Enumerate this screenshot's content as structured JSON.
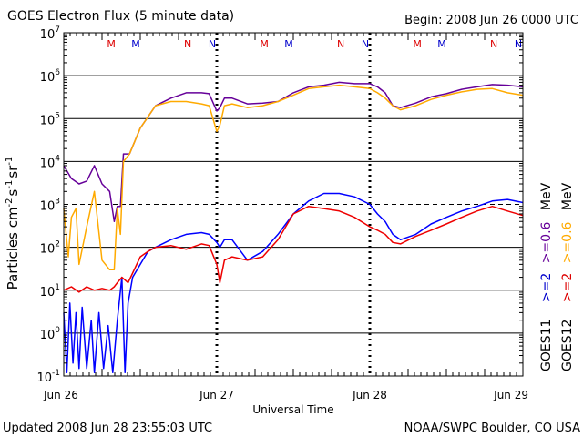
{
  "chart_data": {
    "type": "line",
    "title": "GOES Electron Flux (5 minute data)",
    "begin_label": "Begin: 2008 Jun 26 0000 UTC",
    "xlabel": "Universal Time",
    "ylabel_parts": [
      "Particles cm",
      "-2",
      "s",
      "-1",
      "sr",
      "-1"
    ],
    "updated_label": "Updated 2008 Jun 28 23:55:03 UTC",
    "credit_label": "NOAA/SWPC Boulder, CO USA",
    "x_unit": "days since 2008 Jun 26 0000 UTC",
    "xlim": [
      0,
      3
    ],
    "x_ticks": [
      {
        "x": 0,
        "label": "Jun 26"
      },
      {
        "x": 1,
        "label": "Jun 27"
      },
      {
        "x": 2,
        "label": "Jun 28"
      },
      {
        "x": 3,
        "label": "Jun 29"
      }
    ],
    "y_scale": "log",
    "ylim": [
      0.1,
      10000000
    ],
    "y_ticks": [
      {
        "v": 0.1,
        "base": "10",
        "exp": "-1"
      },
      {
        "v": 1,
        "base": "10",
        "exp": "0"
      },
      {
        "v": 10,
        "base": "10",
        "exp": "1"
      },
      {
        "v": 100,
        "base": "10",
        "exp": "2"
      },
      {
        "v": 1000,
        "base": "10",
        "exp": "3"
      },
      {
        "v": 10000,
        "base": "10",
        "exp": "4"
      },
      {
        "v": 100000,
        "base": "10",
        "exp": "5"
      },
      {
        "v": 1000000,
        "base": "10",
        "exp": "6"
      },
      {
        "v": 10000000,
        "base": "10",
        "exp": "7"
      }
    ],
    "threshold": 1000,
    "day_markers": [
      {
        "x": 0.31,
        "label": "M",
        "color": "#dd0000"
      },
      {
        "x": 0.47,
        "label": "M",
        "color": "#0000cc"
      },
      {
        "x": 0.81,
        "label": "N",
        "color": "#dd0000"
      },
      {
        "x": 0.97,
        "label": "N",
        "color": "#0000cc"
      },
      {
        "x": 1.31,
        "label": "M",
        "color": "#dd0000"
      },
      {
        "x": 1.47,
        "label": "M",
        "color": "#0000cc"
      },
      {
        "x": 1.81,
        "label": "N",
        "color": "#dd0000"
      },
      {
        "x": 1.97,
        "label": "N",
        "color": "#0000cc"
      },
      {
        "x": 2.31,
        "label": "M",
        "color": "#dd0000"
      },
      {
        "x": 2.47,
        "label": "M",
        "color": "#0000cc"
      },
      {
        "x": 2.81,
        "label": "N",
        "color": "#dd0000"
      },
      {
        "x": 2.97,
        "label": "N",
        "color": "#0000cc"
      }
    ],
    "legend_goes11": {
      "satellite": "GOES11",
      "entries": [
        {
          "label": ">=2",
          "color": "#0000cc"
        },
        {
          "label": ">=0.6",
          "color": "#660099"
        }
      ],
      "unit": "MeV"
    },
    "legend_goes12": {
      "satellite": "GOES12",
      "entries": [
        {
          "label": ">=2",
          "color": "#dd0000"
        },
        {
          "label": ">=0.6",
          "color": "#ffaa00"
        }
      ],
      "unit": "MeV"
    },
    "series": [
      {
        "name": "GOES11 >=0.6 MeV",
        "color": "#660099",
        "points": [
          [
            0,
            8000
          ],
          [
            0.05,
            4000
          ],
          [
            0.1,
            3000
          ],
          [
            0.15,
            3500
          ],
          [
            0.2,
            8000
          ],
          [
            0.25,
            3000
          ],
          [
            0.3,
            2000
          ],
          [
            0.33,
            400
          ],
          [
            0.35,
            900
          ],
          [
            0.37,
            900
          ],
          [
            0.39,
            15000
          ],
          [
            0.43,
            15000
          ],
          [
            0.5,
            60000
          ],
          [
            0.6,
            200000
          ],
          [
            0.7,
            300000
          ],
          [
            0.8,
            400000
          ],
          [
            0.9,
            400000
          ],
          [
            0.95,
            380000
          ],
          [
            1,
            150000
          ],
          [
            1.02,
            180000
          ],
          [
            1.05,
            300000
          ],
          [
            1.1,
            300000
          ],
          [
            1.2,
            220000
          ],
          [
            1.3,
            230000
          ],
          [
            1.4,
            250000
          ],
          [
            1.5,
            400000
          ],
          [
            1.6,
            550000
          ],
          [
            1.7,
            600000
          ],
          [
            1.8,
            700000
          ],
          [
            1.9,
            650000
          ],
          [
            2.0,
            650000
          ],
          [
            2.05,
            550000
          ],
          [
            2.1,
            400000
          ],
          [
            2.15,
            200000
          ],
          [
            2.2,
            180000
          ],
          [
            2.3,
            230000
          ],
          [
            2.4,
            320000
          ],
          [
            2.5,
            380000
          ],
          [
            2.6,
            480000
          ],
          [
            2.7,
            550000
          ],
          [
            2.8,
            620000
          ],
          [
            2.9,
            600000
          ],
          [
            3,
            550000
          ]
        ]
      },
      {
        "name": "GOES12 >=0.6 MeV",
        "color": "#ffaa00",
        "points": [
          [
            0,
            800
          ],
          [
            0.03,
            60
          ],
          [
            0.05,
            500
          ],
          [
            0.08,
            800
          ],
          [
            0.1,
            40
          ],
          [
            0.15,
            300
          ],
          [
            0.2,
            2000
          ],
          [
            0.25,
            50
          ],
          [
            0.3,
            30
          ],
          [
            0.33,
            30
          ],
          [
            0.35,
            800
          ],
          [
            0.37,
            200
          ],
          [
            0.39,
            10000
          ],
          [
            0.43,
            15000
          ],
          [
            0.5,
            60000
          ],
          [
            0.6,
            200000
          ],
          [
            0.7,
            250000
          ],
          [
            0.8,
            250000
          ],
          [
            0.9,
            220000
          ],
          [
            0.95,
            200000
          ],
          [
            1,
            50000
          ],
          [
            1.02,
            70000
          ],
          [
            1.05,
            200000
          ],
          [
            1.1,
            220000
          ],
          [
            1.2,
            180000
          ],
          [
            1.3,
            200000
          ],
          [
            1.4,
            250000
          ],
          [
            1.5,
            350000
          ],
          [
            1.6,
            500000
          ],
          [
            1.7,
            550000
          ],
          [
            1.8,
            600000
          ],
          [
            1.9,
            550000
          ],
          [
            2.0,
            500000
          ],
          [
            2.05,
            400000
          ],
          [
            2.1,
            300000
          ],
          [
            2.15,
            200000
          ],
          [
            2.2,
            160000
          ],
          [
            2.3,
            200000
          ],
          [
            2.4,
            280000
          ],
          [
            2.5,
            350000
          ],
          [
            2.6,
            420000
          ],
          [
            2.7,
            480000
          ],
          [
            2.8,
            500000
          ],
          [
            2.9,
            400000
          ],
          [
            3,
            350000
          ]
        ]
      },
      {
        "name": "GOES11 >=2 MeV",
        "color": "#0000ff",
        "points": [
          [
            0,
            3
          ],
          [
            0.02,
            0.12
          ],
          [
            0.04,
            5
          ],
          [
            0.06,
            0.2
          ],
          [
            0.08,
            3
          ],
          [
            0.1,
            0.15
          ],
          [
            0.12,
            4
          ],
          [
            0.15,
            0.15
          ],
          [
            0.18,
            2
          ],
          [
            0.2,
            0.12
          ],
          [
            0.23,
            3
          ],
          [
            0.26,
            0.15
          ],
          [
            0.29,
            1.5
          ],
          [
            0.32,
            0.12
          ],
          [
            0.35,
            2
          ],
          [
            0.38,
            20
          ],
          [
            0.4,
            0.12
          ],
          [
            0.42,
            5
          ],
          [
            0.45,
            20
          ],
          [
            0.5,
            40
          ],
          [
            0.55,
            80
          ],
          [
            0.6,
            100
          ],
          [
            0.7,
            150
          ],
          [
            0.8,
            200
          ],
          [
            0.9,
            220
          ],
          [
            0.95,
            200
          ],
          [
            1,
            130
          ],
          [
            1.02,
            100
          ],
          [
            1.05,
            150
          ],
          [
            1.1,
            150
          ],
          [
            1.2,
            50
          ],
          [
            1.3,
            80
          ],
          [
            1.4,
            200
          ],
          [
            1.5,
            600
          ],
          [
            1.6,
            1200
          ],
          [
            1.7,
            1800
          ],
          [
            1.8,
            1800
          ],
          [
            1.9,
            1500
          ],
          [
            2.0,
            1000
          ],
          [
            2.05,
            600
          ],
          [
            2.1,
            400
          ],
          [
            2.15,
            200
          ],
          [
            2.2,
            150
          ],
          [
            2.3,
            200
          ],
          [
            2.4,
            350
          ],
          [
            2.5,
            500
          ],
          [
            2.6,
            700
          ],
          [
            2.7,
            900
          ],
          [
            2.8,
            1200
          ],
          [
            2.9,
            1300
          ],
          [
            3,
            1100
          ]
        ]
      },
      {
        "name": "GOES12 >=2 MeV",
        "color": "#ee0000",
        "points": [
          [
            0,
            10
          ],
          [
            0.05,
            12
          ],
          [
            0.1,
            9
          ],
          [
            0.15,
            12
          ],
          [
            0.2,
            10
          ],
          [
            0.25,
            11
          ],
          [
            0.3,
            10
          ],
          [
            0.33,
            12
          ],
          [
            0.35,
            15
          ],
          [
            0.38,
            20
          ],
          [
            0.42,
            15
          ],
          [
            0.45,
            25
          ],
          [
            0.5,
            60
          ],
          [
            0.55,
            80
          ],
          [
            0.6,
            100
          ],
          [
            0.7,
            110
          ],
          [
            0.8,
            90
          ],
          [
            0.9,
            120
          ],
          [
            0.95,
            110
          ],
          [
            1,
            40
          ],
          [
            1.02,
            15
          ],
          [
            1.05,
            50
          ],
          [
            1.1,
            60
          ],
          [
            1.2,
            50
          ],
          [
            1.3,
            60
          ],
          [
            1.4,
            150
          ],
          [
            1.5,
            600
          ],
          [
            1.6,
            900
          ],
          [
            1.7,
            800
          ],
          [
            1.8,
            700
          ],
          [
            1.9,
            500
          ],
          [
            2.0,
            300
          ],
          [
            2.05,
            250
          ],
          [
            2.1,
            200
          ],
          [
            2.15,
            130
          ],
          [
            2.2,
            120
          ],
          [
            2.3,
            180
          ],
          [
            2.4,
            250
          ],
          [
            2.5,
            350
          ],
          [
            2.6,
            500
          ],
          [
            2.7,
            700
          ],
          [
            2.8,
            900
          ],
          [
            2.9,
            700
          ],
          [
            3,
            550
          ]
        ]
      }
    ]
  }
}
